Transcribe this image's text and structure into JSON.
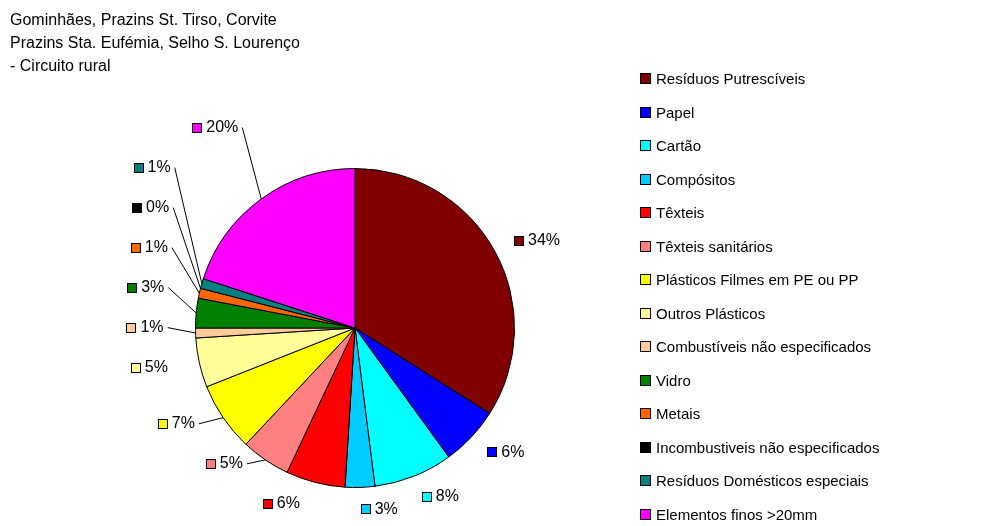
{
  "chart_data": {
    "type": "pie",
    "title": "Gominhães, Prazins St. Tirso, Corvite\nPrazins Sta. Eufémia, Selho S. Lourenço\n- Circuito rural",
    "categories": [
      "Resíduos Putrescíveis",
      "Papel",
      "Cartão",
      "Compósitos",
      "Têxteis",
      "Têxteis sanitários",
      "Plásticos Filmes em PE ou PP",
      "Outros Plásticos",
      "Combustíveis não especificados",
      "Vidro",
      "Metais",
      "Incombustiveis não especificados",
      "Resíduos Domésticos especiais",
      "Elementos finos >20mm"
    ],
    "values": [
      34,
      6,
      8,
      3,
      6,
      5,
      7,
      5,
      1,
      3,
      1,
      0,
      1,
      20
    ],
    "colors": [
      "#800000",
      "#0000ff",
      "#00ffff",
      "#00ccff",
      "#ff0000",
      "#ff8080",
      "#ffff00",
      "#ffff99",
      "#ffcc99",
      "#008000",
      "#ff6600",
      "#000000",
      "#008080",
      "#ff00ff"
    ],
    "value_labels": [
      "34%",
      "6%",
      "8%",
      "3%",
      "6%",
      "5%",
      "7%",
      "5%",
      "1%",
      "3%",
      "1%",
      "0%",
      "1%",
      "20%"
    ],
    "legend": "right"
  }
}
